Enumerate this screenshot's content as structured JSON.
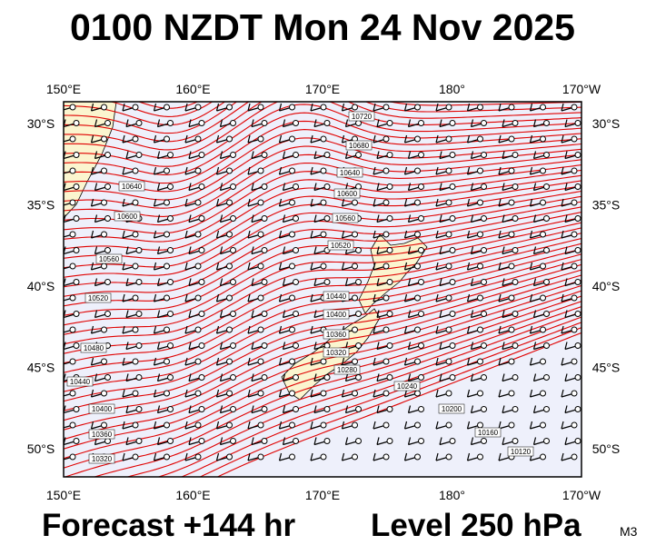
{
  "title": "0100 NZDT Mon 24 Nov 2025",
  "lon_labels": [
    "150°E",
    "160°E",
    "170°E",
    "180°",
    "170°W"
  ],
  "lat_labels": [
    "30°S",
    "35°S",
    "40°S",
    "45°S",
    "50°S"
  ],
  "contour_labels": [
    "10720",
    "10680",
    "10640",
    "10600",
    "10560",
    "10520",
    "10440",
    "10400",
    "10360",
    "10320",
    "10280",
    "10240",
    "10200",
    "10160",
    "10120",
    "10640",
    "10600",
    "10560",
    "10520",
    "10480",
    "10440",
    "10400",
    "10360",
    "10320"
  ],
  "footer": {
    "forecast": "Forecast +144 hr",
    "level": "Level 250 hPa",
    "model": "M3"
  }
}
